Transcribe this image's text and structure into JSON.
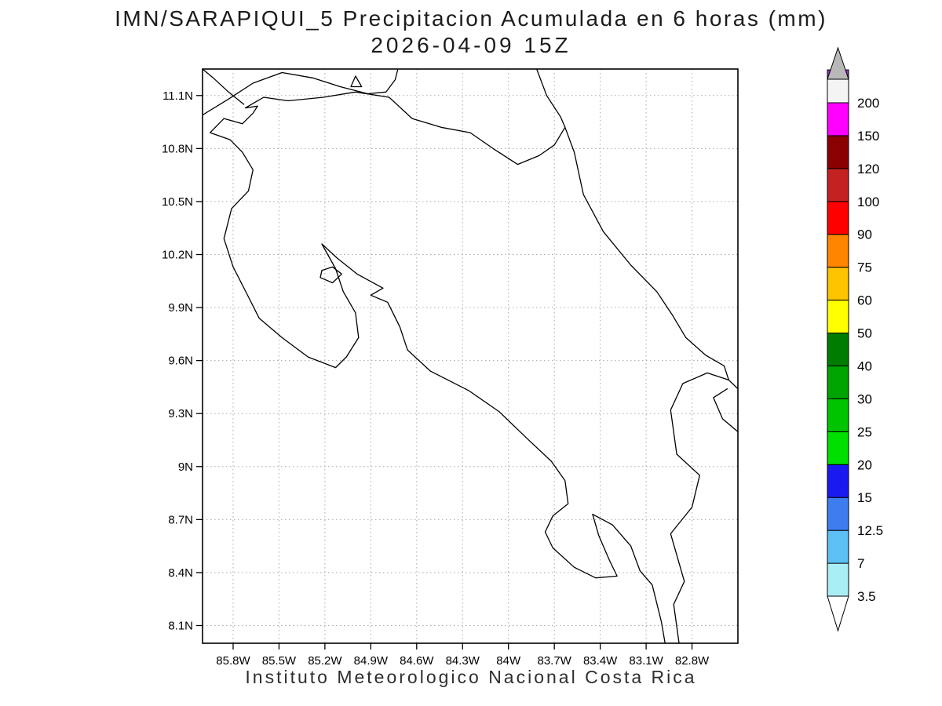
{
  "chart_data": {
    "type": "map",
    "title": "IMN/SARAPIQUI_5 Precipitacion Acumulada en 6 horas (mm)",
    "subtitle": "2026-04-09 15Z",
    "credit": "Instituto Meteorologico Nacional Costa Rica",
    "units": "mm",
    "field_note": "No precipitation shading visible on map; accumulated values everywhere below lowest level 3.5 mm",
    "grid": true,
    "domain": {
      "lon_west": 86.0,
      "lon_east": 82.5,
      "lat_south": 8.0,
      "lat_north": 11.25
    },
    "lat_axis": {
      "labels": [
        "11.1N",
        "10.8N",
        "10.5N",
        "10.2N",
        "9.9N",
        "9.6N",
        "9.3N",
        "9N",
        "8.7N",
        "8.4N",
        "8.1N"
      ],
      "values": [
        11.1,
        10.8,
        10.5,
        10.2,
        9.9,
        9.6,
        9.3,
        9.0,
        8.7,
        8.4,
        8.1
      ]
    },
    "lon_axis": {
      "labels": [
        "85.8W",
        "85.5W",
        "85.2W",
        "84.9W",
        "84.6W",
        "84.3W",
        "84W",
        "83.7W",
        "83.4W",
        "83.1W",
        "82.8W"
      ],
      "values": [
        85.8,
        85.5,
        85.2,
        84.9,
        84.6,
        84.3,
        84.0,
        83.7,
        83.4,
        83.1,
        82.8
      ]
    },
    "colorbar": {
      "labels": [
        "3.5",
        "7",
        "12.5",
        "15",
        "20",
        "25",
        "30",
        "40",
        "50",
        "60",
        "75",
        "90",
        "100",
        "120",
        "150",
        "200"
      ],
      "levels": [
        3.5,
        7,
        12.5,
        15,
        20,
        25,
        30,
        40,
        50,
        60,
        75,
        90,
        100,
        120,
        150,
        200
      ],
      "range_colors": [
        "#aaeef5",
        "#5cc0f5",
        "#3d7df0",
        "#1a1af0",
        "#00e000",
        "#00c400",
        "#00a400",
        "#007d00",
        "#ffff00",
        "#ffc400",
        "#ff8400",
        "#ff0000",
        "#c42222",
        "#8b0000",
        "#ff00ff",
        "#9933cc"
      ],
      "over_color": "#f4f4f4",
      "over_arrow_color": "#b8b8b8",
      "under_arrow_color": "#ffffff"
    },
    "coastlines": [
      {
        "name": "costa-rica-mainland",
        "closed": true,
        "points": [
          [
            85.72,
            11.03
          ],
          [
            85.6,
            11.09
          ],
          [
            85.44,
            11.07
          ],
          [
            85.21,
            11.09
          ],
          [
            85.0,
            11.12
          ],
          [
            84.78,
            11.09
          ],
          [
            84.63,
            10.97
          ],
          [
            84.44,
            10.92
          ],
          [
            84.25,
            10.89
          ],
          [
            84.1,
            10.8
          ],
          [
            83.94,
            10.71
          ],
          [
            83.8,
            10.76
          ],
          [
            83.7,
            10.82
          ],
          [
            83.63,
            10.92
          ],
          [
            83.57,
            10.78
          ],
          [
            83.51,
            10.54
          ],
          [
            83.38,
            10.33
          ],
          [
            83.2,
            10.14
          ],
          [
            83.03,
            9.99
          ],
          [
            82.93,
            9.86
          ],
          [
            82.84,
            9.73
          ],
          [
            82.71,
            9.63
          ],
          [
            82.59,
            9.57
          ],
          [
            82.56,
            9.49
          ],
          [
            82.7,
            9.53
          ],
          [
            82.86,
            9.47
          ],
          [
            82.94,
            9.32
          ],
          [
            82.9,
            9.07
          ],
          [
            82.75,
            8.95
          ],
          [
            82.8,
            8.77
          ],
          [
            82.94,
            8.62
          ],
          [
            82.85,
            8.35
          ],
          [
            82.92,
            8.22
          ],
          [
            82.88,
            7.97
          ],
          [
            82.97,
            7.97
          ],
          [
            83.0,
            8.12
          ],
          [
            83.06,
            8.33
          ],
          [
            83.14,
            8.41
          ],
          [
            83.2,
            8.55
          ],
          [
            83.32,
            8.67
          ],
          [
            83.45,
            8.73
          ],
          [
            83.41,
            8.61
          ],
          [
            83.34,
            8.47
          ],
          [
            83.29,
            8.38
          ],
          [
            83.43,
            8.37
          ],
          [
            83.57,
            8.43
          ],
          [
            83.71,
            8.54
          ],
          [
            83.76,
            8.63
          ],
          [
            83.71,
            8.72
          ],
          [
            83.61,
            8.79
          ],
          [
            83.63,
            8.92
          ],
          [
            83.72,
            9.03
          ],
          [
            83.88,
            9.16
          ],
          [
            84.06,
            9.31
          ],
          [
            84.26,
            9.43
          ],
          [
            84.51,
            9.54
          ],
          [
            84.66,
            9.66
          ],
          [
            84.71,
            9.79
          ],
          [
            84.79,
            9.93
          ],
          [
            84.9,
            9.97
          ],
          [
            84.82,
            10.01
          ],
          [
            84.99,
            10.09
          ],
          [
            85.12,
            10.18
          ],
          [
            85.22,
            10.26
          ],
          [
            85.13,
            10.12
          ],
          [
            85.08,
            9.99
          ],
          [
            85.0,
            9.87
          ],
          [
            84.98,
            9.73
          ],
          [
            85.06,
            9.62
          ],
          [
            85.13,
            9.56
          ],
          [
            85.31,
            9.62
          ],
          [
            85.48,
            9.73
          ],
          [
            85.63,
            9.84
          ],
          [
            85.7,
            9.96
          ],
          [
            85.8,
            10.13
          ],
          [
            85.86,
            10.29
          ],
          [
            85.81,
            10.46
          ],
          [
            85.7,
            10.56
          ],
          [
            85.67,
            10.68
          ],
          [
            85.74,
            10.78
          ],
          [
            85.82,
            10.85
          ],
          [
            85.95,
            10.89
          ],
          [
            85.86,
            10.97
          ],
          [
            85.74,
            10.94
          ],
          [
            85.67,
            11.0
          ],
          [
            85.64,
            11.04
          ]
        ]
      },
      {
        "name": "lake-nicaragua-shore",
        "closed": false,
        "points": [
          [
            86.0,
            10.99
          ],
          [
            85.83,
            11.08
          ],
          [
            85.67,
            11.17
          ],
          [
            85.48,
            11.23
          ],
          [
            85.28,
            11.2
          ],
          [
            85.1,
            11.15
          ],
          [
            84.92,
            11.11
          ],
          [
            84.8,
            11.12
          ],
          [
            84.74,
            11.19
          ],
          [
            84.72,
            11.26
          ]
        ]
      },
      {
        "name": "nicaragua-pacific-coast",
        "closed": false,
        "points": [
          [
            85.73,
            11.05
          ],
          [
            85.83,
            11.12
          ],
          [
            85.93,
            11.2
          ],
          [
            86.0,
            11.25
          ]
        ]
      },
      {
        "name": "nicaragua-caribbean-coast",
        "closed": false,
        "points": [
          [
            83.82,
            11.26
          ],
          [
            83.75,
            11.1
          ],
          [
            83.66,
            10.98
          ],
          [
            83.63,
            10.92
          ]
        ]
      },
      {
        "name": "panama-caribbean-coast",
        "closed": false,
        "points": [
          [
            82.56,
            9.49
          ],
          [
            82.5,
            9.44
          ],
          [
            82.44,
            9.42
          ]
        ]
      },
      {
        "name": "bocas-lagoon-shore",
        "closed": false,
        "points": [
          [
            82.49,
            9.19
          ],
          [
            82.6,
            9.27
          ],
          [
            82.66,
            9.39
          ],
          [
            82.57,
            9.44
          ]
        ]
      },
      {
        "name": "isla-chira",
        "closed": true,
        "points": [
          [
            85.23,
            10.07
          ],
          [
            85.22,
            10.11
          ],
          [
            85.15,
            10.13
          ],
          [
            85.09,
            10.09
          ],
          [
            85.15,
            10.04
          ]
        ]
      },
      {
        "name": "lake-island",
        "closed": true,
        "points": [
          [
            85.03,
            11.15
          ],
          [
            85.0,
            11.21
          ],
          [
            84.96,
            11.15
          ]
        ]
      }
    ]
  }
}
